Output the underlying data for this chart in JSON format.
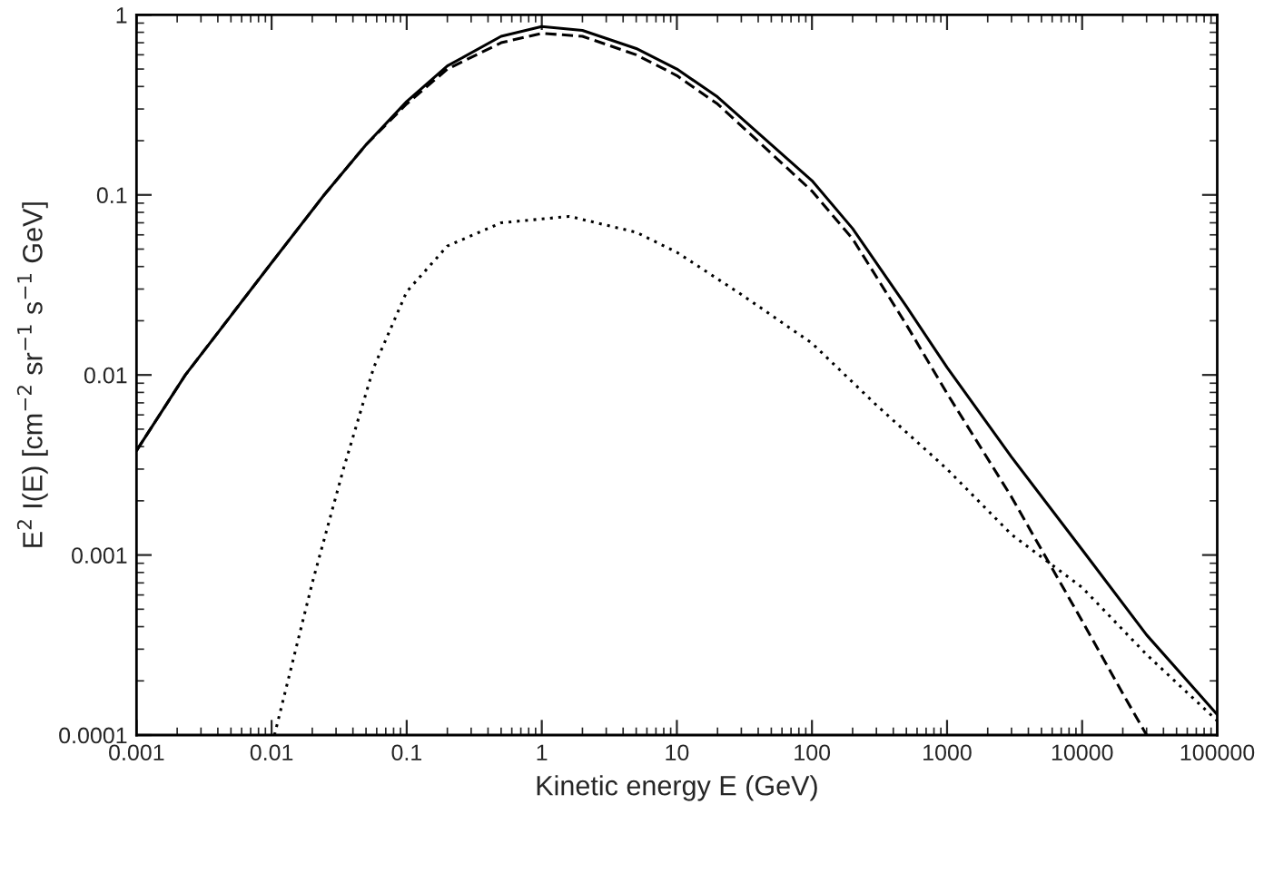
{
  "chart_data": {
    "type": "line",
    "xlabel": "Kinetic energy E (GeV)",
    "ylabel": "E$^{2}$ I(E) [cm$^{−2}$ sr$^{−1}$ s$^{−1}$ GeV]",
    "log": "xy",
    "xlim": [
      0.001,
      100000
    ],
    "ylim": [
      0.0001,
      1
    ],
    "xticks": [
      0.001,
      0.01,
      0.1,
      1,
      10,
      100,
      1000,
      10000,
      100000
    ],
    "yticks": [
      0.0001,
      0.001,
      0.01,
      0.1,
      1
    ],
    "grid": false,
    "legend": false,
    "series": [
      {
        "color": "#000000",
        "line_style": "solid",
        "x": [
          0.001,
          0.0023,
          0.01,
          0.0245,
          0.05,
          0.1,
          0.2,
          0.5,
          1,
          2,
          5,
          10,
          20,
          50,
          100,
          200,
          500,
          1000,
          3000,
          10000,
          30000,
          100000
        ],
        "values": [
          0.0038,
          0.01,
          0.042,
          0.1,
          0.19,
          0.33,
          0.52,
          0.76,
          0.86,
          0.82,
          0.65,
          0.5,
          0.35,
          0.19,
          0.12,
          0.065,
          0.024,
          0.011,
          0.0035,
          0.00107,
          0.00036,
          0.00013
        ]
      },
      {
        "color": "#000000",
        "line_style": "dashed",
        "x": [
          0.001,
          0.0023,
          0.01,
          0.0245,
          0.05,
          0.1,
          0.2,
          0.5,
          1,
          2,
          5,
          10,
          20,
          50,
          100,
          200,
          500,
          1000,
          3000,
          10000,
          20000,
          30000
        ],
        "values": [
          0.0038,
          0.01,
          0.042,
          0.1,
          0.19,
          0.32,
          0.5,
          0.7,
          0.79,
          0.76,
          0.6,
          0.46,
          0.32,
          0.17,
          0.105,
          0.057,
          0.019,
          0.0079,
          0.0021,
          0.00043,
          0.00017,
          0.0001
        ]
      },
      {
        "color": "#000000",
        "line_style": "dotted",
        "x": [
          0.0105,
          0.02,
          0.034,
          0.057,
          0.1,
          0.2,
          0.5,
          1.6,
          5,
          10,
          30,
          100,
          300,
          1000,
          3000,
          10000,
          30000,
          100000
        ],
        "values": [
          0.0001,
          0.0007,
          0.003,
          0.011,
          0.029,
          0.052,
          0.07,
          0.076,
          0.062,
          0.048,
          0.028,
          0.015,
          0.0068,
          0.003,
          0.0013,
          0.00066,
          0.00028,
          0.00012
        ]
      }
    ]
  }
}
